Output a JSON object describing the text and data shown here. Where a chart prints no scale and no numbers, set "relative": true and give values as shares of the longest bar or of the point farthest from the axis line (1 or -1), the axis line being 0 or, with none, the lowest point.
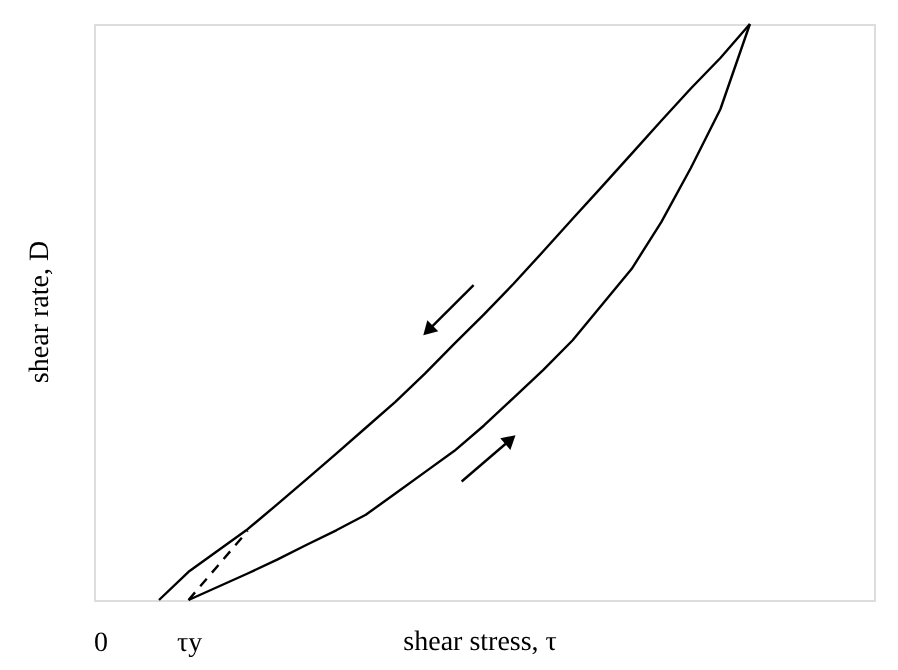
{
  "chart_data": {
    "type": "line",
    "relative": true,
    "xlabel": "shear stress, τ",
    "ylabel": "shear rate, D",
    "marker": "none",
    "categories": [
      "0",
      null,
      null,
      "τy",
      null,
      null,
      null,
      null,
      null,
      null,
      null,
      null,
      null,
      null,
      null,
      null,
      null,
      null,
      null,
      null,
      null,
      null,
      null,
      null,
      null,
      null,
      null
    ],
    "series": [
      {
        "color": "#000000",
        "line_style": "solid",
        "values": [
          null,
          null,
          0,
          0.049,
          0.086,
          0.123,
          0.166,
          0.21,
          0.254,
          0.299,
          0.344,
          0.393,
          0.445,
          0.496,
          0.549,
          0.605,
          0.662,
          0.718,
          0.775,
          0.832,
          0.888,
          0.941,
          1,
          null,
          null,
          null,
          null
        ]
      },
      {
        "color": "#000000",
        "line_style": "solid",
        "values": [
          null,
          null,
          null,
          0,
          0.023,
          0.046,
          0.07,
          0.096,
          0.121,
          0.148,
          0.185,
          0.222,
          0.259,
          0.303,
          0.351,
          0.399,
          0.451,
          0.513,
          0.575,
          0.656,
          0.75,
          0.852,
          1,
          null,
          null,
          null,
          null
        ]
      },
      {
        "color": "#000000",
        "line_style": "dashed",
        "values": [
          null,
          null,
          null,
          0,
          0.06,
          0.12,
          null,
          null,
          null,
          null,
          null,
          null,
          null,
          null,
          null,
          null,
          null,
          null,
          null,
          null,
          null,
          null,
          null,
          null,
          null,
          null,
          null
        ]
      }
    ]
  }
}
